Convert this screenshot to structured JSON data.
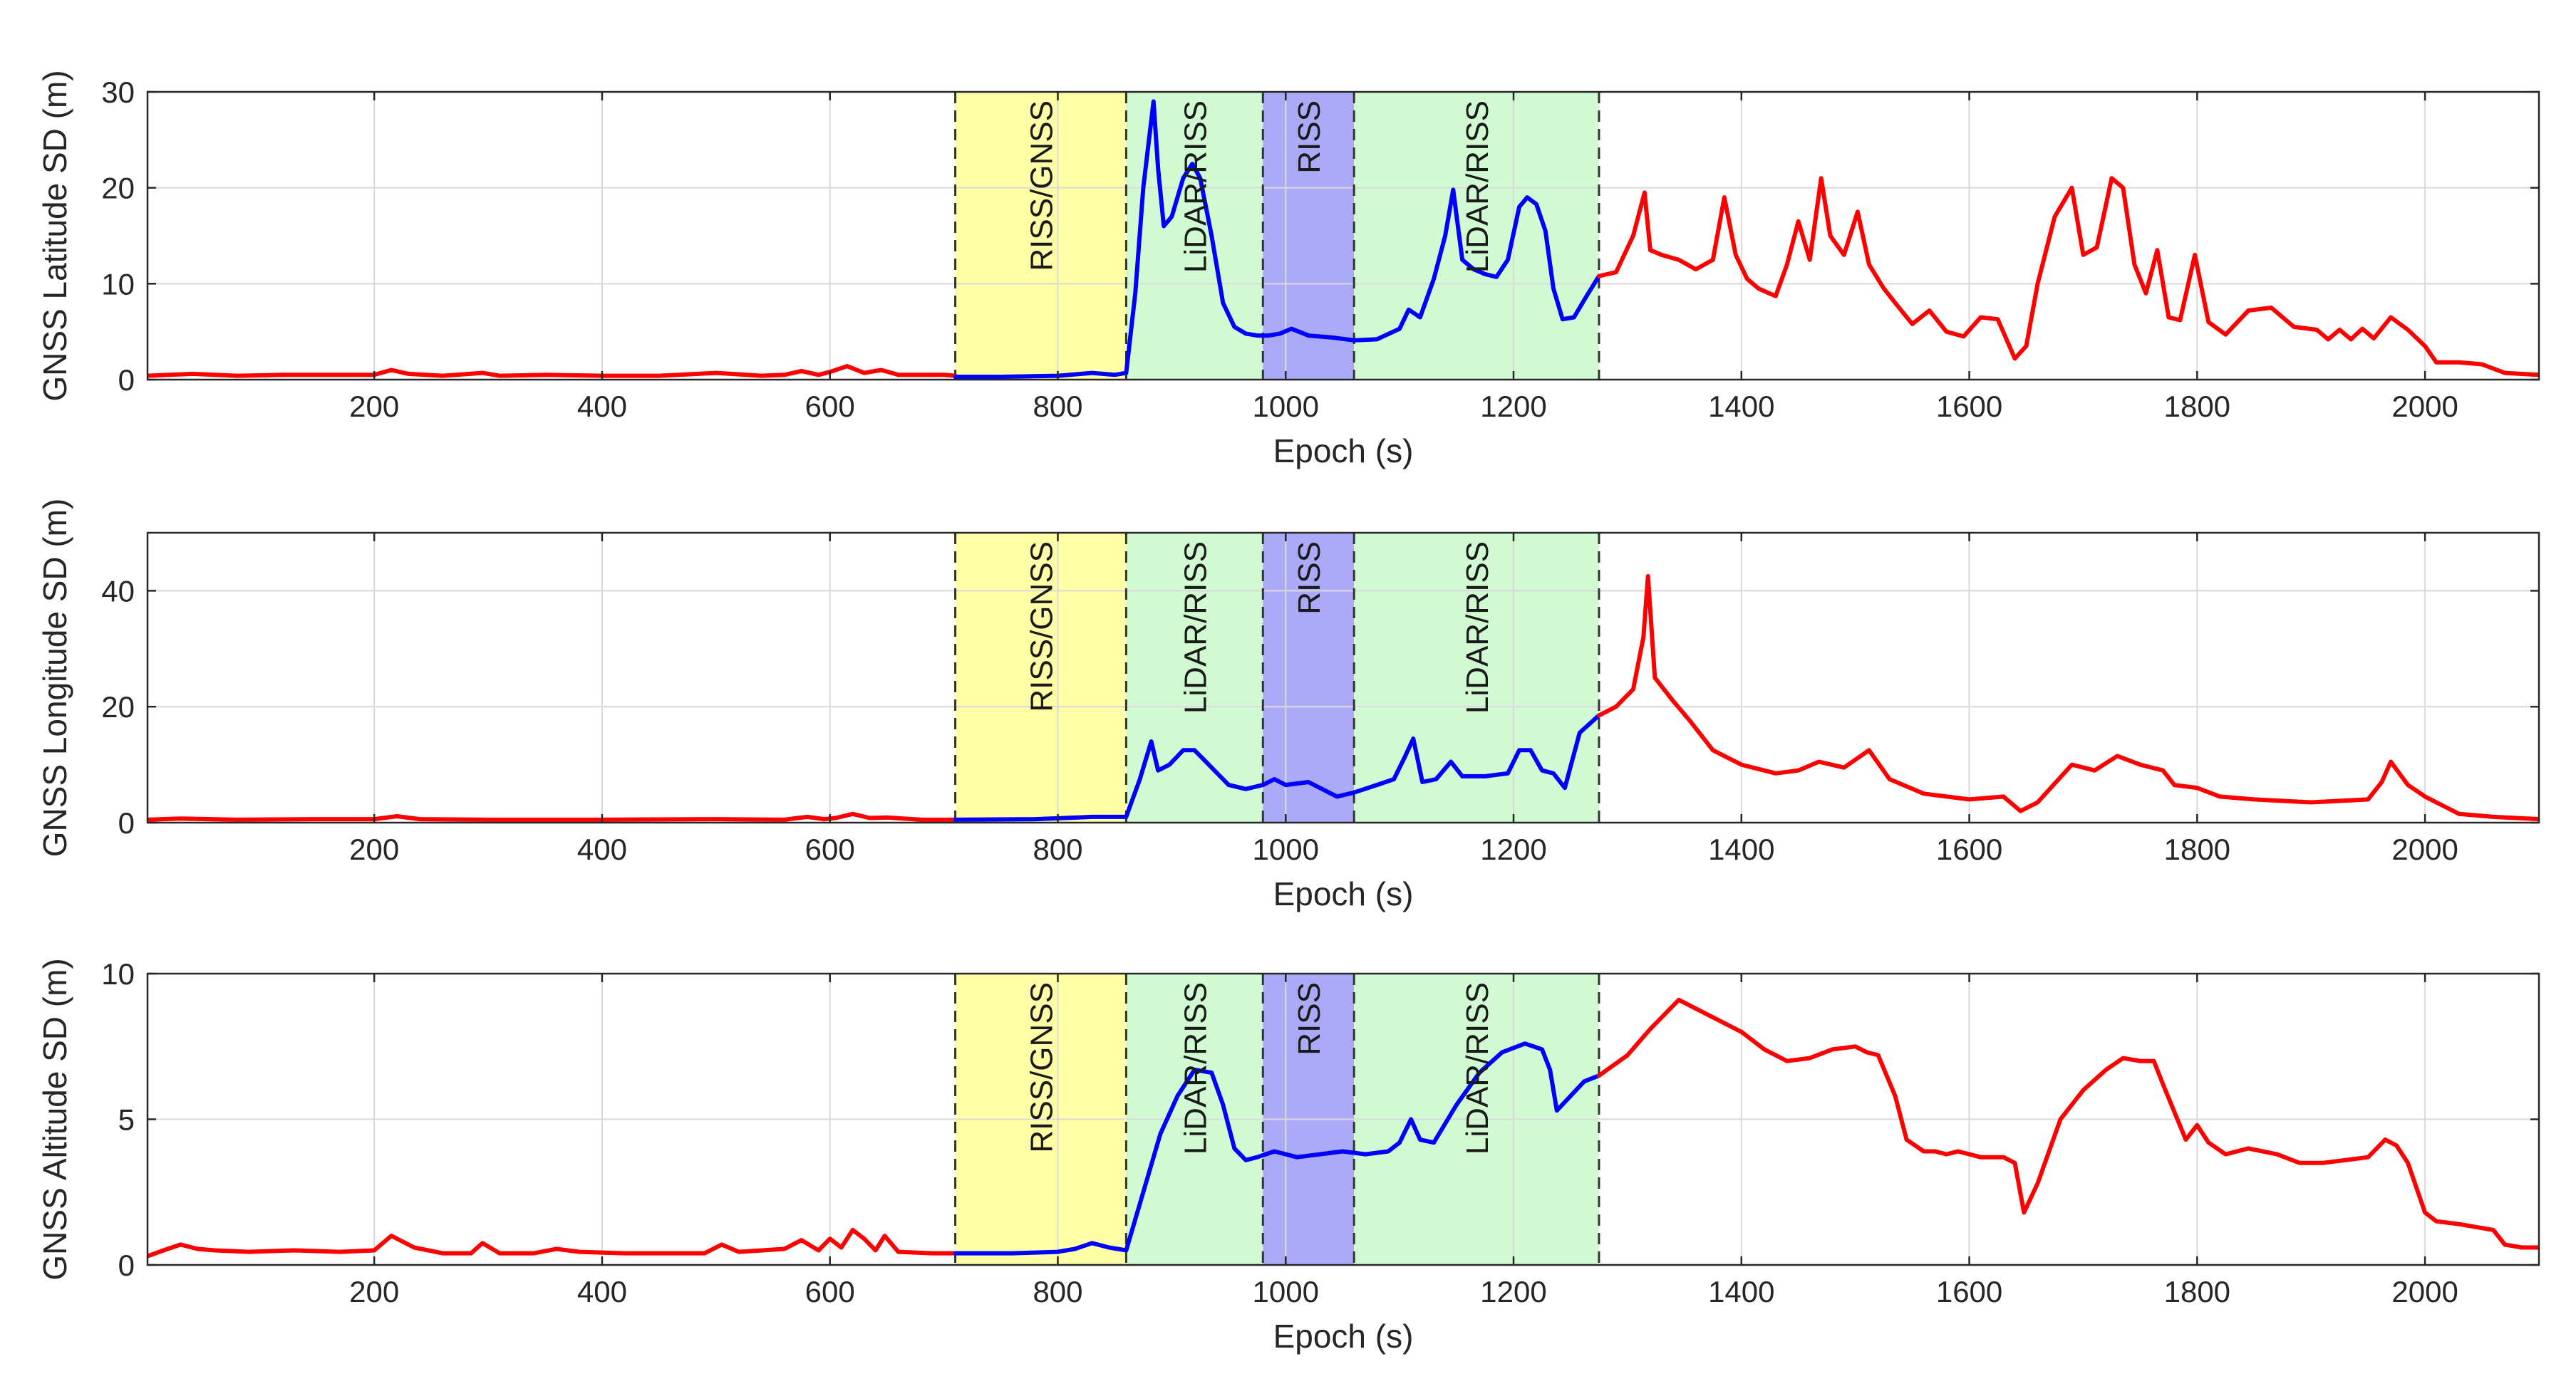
{
  "chart_data": [
    {
      "type": "line",
      "title": "",
      "xlabel": "Epoch (s)",
      "ylabel": "GNSS Latitude SD (m)",
      "xlim": [
        1,
        2100
      ],
      "ylim": [
        0,
        30
      ],
      "xticks": [
        "200",
        "400",
        "600",
        "800",
        "1000",
        "1200",
        "1400",
        "1600",
        "1800",
        "2000"
      ],
      "yticks": [
        "0",
        "10",
        "20",
        "30"
      ],
      "grid": true,
      "regions": [
        {
          "label": "RISS/GNSS",
          "x": [
            710,
            860
          ],
          "color": "#ffffa6"
        },
        {
          "label": "LiDAR/RISS",
          "x": [
            860,
            980
          ],
          "color": "#d2fad2"
        },
        {
          "label": "RISS",
          "x": [
            980,
            1060
          ],
          "color": "#aaaaf8"
        },
        {
          "label": "LiDAR/RISS",
          "x": [
            1060,
            1275
          ],
          "color": "#d2fad2"
        }
      ],
      "series": [
        {
          "name": "GNSS",
          "color": "#ff0000",
          "segment": "before",
          "x": [
            1,
            20,
            40,
            80,
            120,
            160,
            200,
            215,
            230,
            260,
            295,
            310,
            350,
            400,
            450,
            500,
            540,
            560,
            575,
            590,
            600,
            615,
            630,
            645,
            660,
            700,
            710
          ],
          "y": [
            0.4,
            0.5,
            0.6,
            0.4,
            0.5,
            0.5,
            0.5,
            1.0,
            0.6,
            0.4,
            0.7,
            0.4,
            0.5,
            0.4,
            0.4,
            0.7,
            0.4,
            0.5,
            0.9,
            0.5,
            0.8,
            1.4,
            0.7,
            1.0,
            0.5,
            0.5,
            0.4
          ]
        },
        {
          "name": "LiDAR/RISS",
          "color": "#0000ff",
          "segment": "outage",
          "x": [
            710,
            750,
            800,
            830,
            850,
            860,
            868,
            875,
            880,
            884,
            888,
            893,
            900,
            910,
            918,
            925,
            935,
            945,
            955,
            965,
            975,
            985,
            995,
            1005,
            1020,
            1040,
            1060,
            1080,
            1100,
            1108,
            1118,
            1130,
            1140,
            1147,
            1155,
            1165,
            1175,
            1185,
            1195,
            1205,
            1212,
            1220,
            1228,
            1235,
            1243,
            1253,
            1263,
            1275
          ],
          "y": [
            0.3,
            0.3,
            0.4,
            0.7,
            0.5,
            0.7,
            9,
            20,
            25,
            29,
            22,
            16,
            17,
            21,
            22.5,
            21,
            15,
            8,
            5.5,
            4.8,
            4.6,
            4.6,
            4.8,
            5.3,
            4.6,
            4.4,
            4.1,
            4.2,
            5.3,
            7.3,
            6.5,
            10.5,
            15,
            19.8,
            12.5,
            11.5,
            11,
            10.7,
            12.5,
            18,
            19,
            18.3,
            15.5,
            9.5,
            6.3,
            6.5,
            8.5,
            10.8
          ]
        },
        {
          "name": "GNSS",
          "color": "#ff0000",
          "segment": "after",
          "x": [
            1275,
            1290,
            1305,
            1315,
            1320,
            1330,
            1345,
            1360,
            1375,
            1385,
            1395,
            1405,
            1415,
            1430,
            1440,
            1450,
            1460,
            1470,
            1478,
            1490,
            1502,
            1512,
            1525,
            1535,
            1550,
            1565,
            1580,
            1595,
            1610,
            1625,
            1640,
            1650,
            1660,
            1675,
            1690,
            1700,
            1712,
            1725,
            1735,
            1745,
            1755,
            1765,
            1775,
            1785,
            1798,
            1810,
            1825,
            1845,
            1865,
            1885,
            1905,
            1915,
            1925,
            1935,
            1945,
            1955,
            1970,
            1985,
            2000,
            2010,
            2030,
            2050,
            2070,
            2100
          ],
          "y": [
            10.8,
            11.2,
            15,
            19.5,
            13.5,
            13,
            12.5,
            11.5,
            12.5,
            19,
            13,
            10.5,
            9.5,
            8.7,
            12,
            16.5,
            12.5,
            21,
            15,
            13,
            17.5,
            12,
            9.5,
            8,
            5.8,
            7.2,
            5,
            4.5,
            6.5,
            6.3,
            2.2,
            3.5,
            10,
            17,
            20,
            13,
            13.8,
            21,
            20,
            12,
            9,
            13.5,
            6.5,
            6.2,
            13,
            6,
            4.7,
            7.2,
            7.5,
            5.5,
            5.2,
            4.2,
            5.2,
            4.2,
            5.3,
            4.3,
            6.5,
            5.2,
            3.5,
            1.8,
            1.8,
            1.6,
            0.7,
            0.5
          ]
        }
      ]
    },
    {
      "type": "line",
      "title": "",
      "xlabel": "Epoch (s)",
      "ylabel": "GNSS Longitude SD (m)",
      "xlim": [
        1,
        2100
      ],
      "ylim": [
        0,
        50
      ],
      "xticks": [
        "200",
        "400",
        "600",
        "800",
        "1000",
        "1200",
        "1400",
        "1600",
        "1800",
        "2000"
      ],
      "yticks": [
        "0",
        "20",
        "40"
      ],
      "grid": true,
      "regions": [
        {
          "label": "RISS/GNSS",
          "x": [
            710,
            860
          ],
          "color": "#ffffa6"
        },
        {
          "label": "LiDAR/RISS",
          "x": [
            860,
            980
          ],
          "color": "#d2fad2"
        },
        {
          "label": "RISS",
          "x": [
            980,
            1060
          ],
          "color": "#aaaaf8"
        },
        {
          "label": "LiDAR/RISS",
          "x": [
            1060,
            1275
          ],
          "color": "#d2fad2"
        }
      ],
      "series": [
        {
          "name": "GNSS",
          "color": "#ff0000",
          "segment": "before",
          "x": [
            1,
            30,
            80,
            150,
            200,
            220,
            240,
            300,
            400,
            500,
            560,
            580,
            595,
            605,
            620,
            635,
            650,
            680,
            710
          ],
          "y": [
            0.5,
            0.7,
            0.5,
            0.6,
            0.6,
            1.1,
            0.6,
            0.5,
            0.5,
            0.6,
            0.5,
            1.0,
            0.6,
            0.8,
            1.5,
            0.8,
            0.9,
            0.5,
            0.5
          ]
        },
        {
          "name": "LiDAR/RISS",
          "color": "#0000ff",
          "segment": "outage",
          "x": [
            710,
            780,
            830,
            850,
            860,
            872,
            882,
            888,
            898,
            910,
            920,
            930,
            940,
            950,
            965,
            980,
            990,
            1000,
            1020,
            1045,
            1060,
            1080,
            1095,
            1105,
            1112,
            1120,
            1132,
            1145,
            1155,
            1175,
            1195,
            1205,
            1215,
            1225,
            1235,
            1245,
            1258,
            1275
          ],
          "y": [
            0.5,
            0.6,
            1.0,
            1.0,
            1.0,
            7.5,
            14,
            9,
            10,
            12.5,
            12.5,
            10.5,
            8.5,
            6.5,
            5.8,
            6.5,
            7.5,
            6.5,
            7,
            4.5,
            5.2,
            6.5,
            7.5,
            11.5,
            14.5,
            7,
            7.5,
            10.5,
            8,
            8,
            8.5,
            12.5,
            12.5,
            9,
            8.5,
            6,
            15.5,
            18.5
          ]
        },
        {
          "name": "GNSS",
          "color": "#ff0000",
          "segment": "after",
          "x": [
            1275,
            1290,
            1305,
            1314,
            1318,
            1324,
            1340,
            1355,
            1365,
            1375,
            1400,
            1430,
            1450,
            1468,
            1490,
            1512,
            1530,
            1560,
            1600,
            1630,
            1645,
            1660,
            1690,
            1710,
            1730,
            1750,
            1770,
            1780,
            1800,
            1820,
            1850,
            1900,
            1950,
            1962,
            1970,
            1985,
            2000,
            2030,
            2060,
            2100
          ],
          "y": [
            18.5,
            20,
            23,
            32,
            42.5,
            25,
            21,
            17.5,
            15,
            12.5,
            10,
            8.5,
            9,
            10.5,
            9.5,
            12.5,
            7.5,
            5,
            4,
            4.5,
            2,
            3.5,
            10,
            9,
            11.5,
            10,
            9,
            6.5,
            6,
            4.5,
            4,
            3.5,
            4,
            7,
            10.5,
            6.5,
            4.5,
            1.5,
            1.0,
            0.6
          ]
        }
      ]
    },
    {
      "type": "line",
      "title": "",
      "xlabel": "Epoch (s)",
      "ylabel": "GNSS Altitude SD (m)",
      "xlim": [
        1,
        2100
      ],
      "ylim": [
        0,
        10
      ],
      "xticks": [
        "200",
        "400",
        "600",
        "800",
        "1000",
        "1200",
        "1400",
        "1600",
        "1800",
        "2000"
      ],
      "yticks": [
        "0",
        "5",
        "10"
      ],
      "grid": true,
      "regions": [
        {
          "label": "RISS/GNSS",
          "x": [
            710,
            860
          ],
          "color": "#ffffa6"
        },
        {
          "label": "LiDAR/RISS",
          "x": [
            860,
            980
          ],
          "color": "#d2fad2"
        },
        {
          "label": "RISS",
          "x": [
            980,
            1060
          ],
          "color": "#aaaaf8"
        },
        {
          "label": "LiDAR/RISS",
          "x": [
            1060,
            1275
          ],
          "color": "#d2fad2"
        }
      ],
      "series": [
        {
          "name": "GNSS",
          "color": "#ff0000",
          "segment": "before",
          "x": [
            1,
            15,
            30,
            45,
            60,
            90,
            130,
            170,
            200,
            215,
            235,
            260,
            285,
            295,
            310,
            340,
            360,
            380,
            420,
            460,
            490,
            505,
            520,
            560,
            575,
            590,
            600,
            610,
            620,
            630,
            640,
            648,
            660,
            690,
            710
          ],
          "y": [
            0.3,
            0.5,
            0.7,
            0.55,
            0.5,
            0.45,
            0.5,
            0.45,
            0.5,
            1.0,
            0.6,
            0.4,
            0.4,
            0.75,
            0.4,
            0.4,
            0.55,
            0.45,
            0.4,
            0.4,
            0.4,
            0.7,
            0.45,
            0.55,
            0.85,
            0.5,
            0.9,
            0.6,
            1.2,
            0.9,
            0.5,
            1.0,
            0.45,
            0.4,
            0.4
          ]
        },
        {
          "name": "LiDAR/RISS",
          "color": "#0000ff",
          "segment": "outage",
          "x": [
            710,
            760,
            800,
            815,
            830,
            845,
            860,
            875,
            890,
            905,
            920,
            935,
            945,
            955,
            965,
            975,
            990,
            1010,
            1030,
            1050,
            1070,
            1090,
            1100,
            1110,
            1118,
            1130,
            1150,
            1170,
            1190,
            1210,
            1225,
            1232,
            1238,
            1250,
            1262,
            1275
          ],
          "y": [
            0.4,
            0.4,
            0.45,
            0.55,
            0.75,
            0.6,
            0.5,
            2.5,
            4.5,
            5.8,
            6.7,
            6.6,
            5.5,
            4.0,
            3.6,
            3.7,
            3.9,
            3.7,
            3.8,
            3.9,
            3.8,
            3.9,
            4.2,
            5.0,
            4.3,
            4.2,
            5.5,
            6.6,
            7.3,
            7.6,
            7.4,
            6.7,
            5.3,
            5.8,
            6.3,
            6.5
          ]
        },
        {
          "name": "GNSS",
          "color": "#ff0000",
          "segment": "after",
          "x": [
            1275,
            1300,
            1320,
            1335,
            1345,
            1360,
            1380,
            1400,
            1420,
            1440,
            1460,
            1480,
            1500,
            1510,
            1520,
            1535,
            1545,
            1560,
            1570,
            1580,
            1590,
            1610,
            1630,
            1640,
            1648,
            1660,
            1680,
            1700,
            1720,
            1735,
            1750,
            1762,
            1770,
            1790,
            1800,
            1810,
            1825,
            1845,
            1870,
            1890,
            1910,
            1930,
            1950,
            1965,
            1975,
            1985,
            2000,
            2010,
            2030,
            2060,
            2070,
            2085,
            2100
          ],
          "y": [
            6.5,
            7.2,
            8.1,
            8.7,
            9.1,
            8.8,
            8.4,
            8.0,
            7.4,
            7.0,
            7.1,
            7.4,
            7.5,
            7.3,
            7.2,
            5.8,
            4.3,
            3.9,
            3.9,
            3.8,
            3.9,
            3.7,
            3.7,
            3.5,
            1.8,
            2.8,
            5.0,
            6.0,
            6.7,
            7.1,
            7.0,
            7.0,
            6.2,
            4.3,
            4.8,
            4.2,
            3.8,
            4.0,
            3.8,
            3.5,
            3.5,
            3.6,
            3.7,
            4.3,
            4.1,
            3.5,
            1.8,
            1.5,
            1.4,
            1.2,
            0.7,
            0.6,
            0.6
          ]
        }
      ]
    }
  ]
}
